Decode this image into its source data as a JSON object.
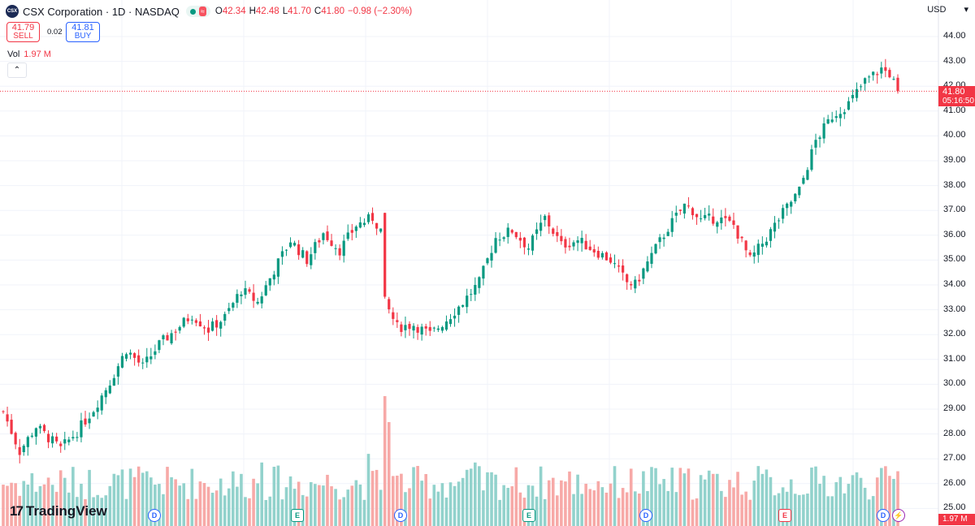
{
  "header": {
    "logo_text": "CSX",
    "title": "CSX Corporation · 1D · NASDAQ",
    "ohlc": {
      "o_label": "O",
      "o_value": "42.34",
      "h_label": "H",
      "h_value": "42.48",
      "l_label": "L",
      "l_value": "41.70",
      "c_label": "C",
      "c_value": "41.80",
      "change": "−0.98 (−2.30%)"
    },
    "market_badge": "≈"
  },
  "trade": {
    "sell_price": "41.79",
    "sell_label": "SELL",
    "spread": "0.02",
    "buy_price": "41.81",
    "buy_label": "BUY"
  },
  "volume_legend": {
    "label": "Vol",
    "value": "1.97 M"
  },
  "collapse_icon": "chevron-up-icon",
  "currency": "USD",
  "price_axis": [
    "44.00",
    "43.00",
    "42.00",
    "41.00",
    "40.00",
    "39.00",
    "38.00",
    "37.00",
    "36.00",
    "35.00",
    "34.00",
    "33.00",
    "32.00",
    "31.00",
    "30.00",
    "29.00",
    "28.00",
    "27.00",
    "26.00",
    "25.00"
  ],
  "last_price": {
    "value": "41.80",
    "countdown": "05:16:50"
  },
  "volume_tag": "1.97 M",
  "brand": "TradingView",
  "events": [
    {
      "type": "dividend",
      "label": "D",
      "class": "d"
    },
    {
      "type": "earnings",
      "label": "E",
      "class": "e"
    },
    {
      "type": "dividend",
      "label": "D",
      "class": "d"
    },
    {
      "type": "earnings",
      "label": "E",
      "class": "e"
    },
    {
      "type": "dividend",
      "label": "D",
      "class": "d"
    },
    {
      "type": "earnings",
      "label": "E",
      "class": "er"
    },
    {
      "type": "dividend",
      "label": "D",
      "class": "d"
    },
    {
      "type": "split",
      "label": "⚡",
      "class": "s"
    }
  ],
  "colors": {
    "up": "#089981",
    "down": "#f23645",
    "up_vol": "#92d2cc",
    "down_vol": "#f7a9a7",
    "grid": "#f0f3fa"
  },
  "chart_data": {
    "type": "candlestick",
    "title": "CSX Corporation · 1D · NASDAQ",
    "ylim": [
      24.9,
      44.3
    ],
    "volume_max_m": 4.5,
    "keypoints": [
      [
        0,
        28.9
      ],
      [
        4,
        27.3
      ],
      [
        8,
        28.3
      ],
      [
        14,
        27.4
      ],
      [
        18,
        28.1
      ],
      [
        22,
        29.0
      ],
      [
        26,
        30.1
      ],
      [
        30,
        31.4
      ],
      [
        34,
        30.7
      ],
      [
        38,
        31.6
      ],
      [
        42,
        32.2
      ],
      [
        46,
        32.8
      ],
      [
        50,
        32.2
      ],
      [
        54,
        32.7
      ],
      [
        58,
        33.8
      ],
      [
        62,
        33.3
      ],
      [
        66,
        34.6
      ],
      [
        70,
        35.8
      ],
      [
        74,
        35.0
      ],
      [
        78,
        36.1
      ],
      [
        82,
        35.4
      ],
      [
        86,
        36.4
      ],
      [
        90,
        36.7
      ],
      [
        92,
        36.2
      ],
      [
        93,
        33.3
      ],
      [
        96,
        32.3
      ],
      [
        100,
        32.4
      ],
      [
        104,
        32.0
      ],
      [
        108,
        32.6
      ],
      [
        112,
        33.3
      ],
      [
        116,
        34.1
      ],
      [
        120,
        35.9
      ],
      [
        124,
        36.2
      ],
      [
        128,
        35.5
      ],
      [
        132,
        36.7
      ],
      [
        136,
        35.6
      ],
      [
        140,
        35.8
      ],
      [
        144,
        35.4
      ],
      [
        148,
        35.0
      ],
      [
        152,
        34.1
      ],
      [
        154,
        34.0
      ],
      [
        158,
        35.2
      ],
      [
        162,
        36.3
      ],
      [
        166,
        37.2
      ],
      [
        168,
        37.0
      ],
      [
        170,
        36.6
      ],
      [
        174,
        36.7
      ],
      [
        178,
        36.4
      ],
      [
        182,
        35.0
      ],
      [
        186,
        35.9
      ],
      [
        190,
        36.9
      ],
      [
        194,
        37.8
      ],
      [
        198,
        39.8
      ],
      [
        202,
        40.8
      ],
      [
        206,
        41.3
      ],
      [
        210,
        42.2
      ],
      [
        214,
        42.7
      ],
      [
        216,
        42.5
      ],
      [
        218,
        41.8
      ]
    ]
  }
}
